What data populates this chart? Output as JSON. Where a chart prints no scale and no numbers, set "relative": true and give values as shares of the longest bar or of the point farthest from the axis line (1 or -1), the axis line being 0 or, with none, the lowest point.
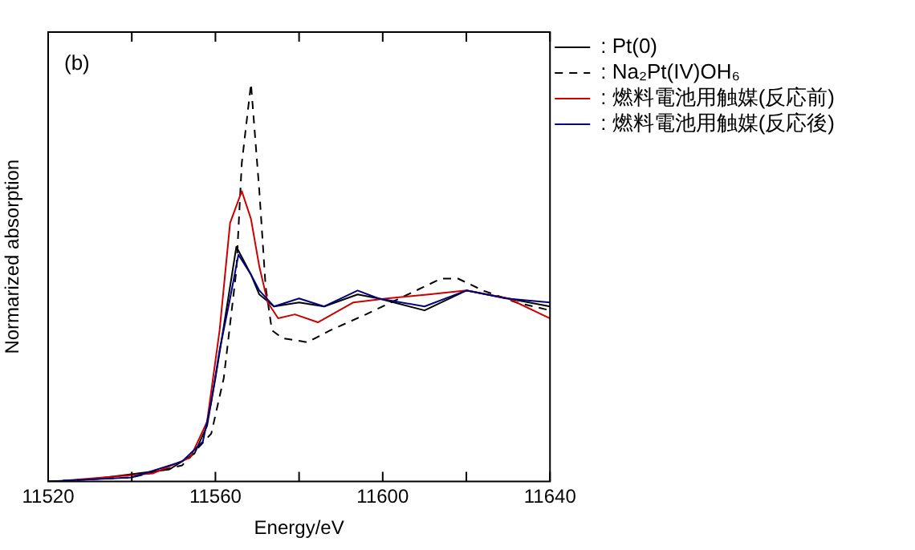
{
  "chart_data": {
    "type": "line",
    "title": "(b)",
    "xlabel": "Energy/eV",
    "ylabel": "Normarized absorption",
    "relative": true,
    "xlim": [
      11520,
      11640
    ],
    "xticks": [
      11520,
      {
        "value": 11540,
        "label": null
      },
      11560,
      {
        "value": 11580,
        "label": null
      },
      11600,
      {
        "value": 11620,
        "label": null
      },
      11640
    ],
    "legend": "right",
    "grid": false,
    "series": [
      {
        "name": ": Pt(0)",
        "color": "#000000",
        "line_style": "solid",
        "x": [
          11530,
          11549,
          11555,
          11558,
          11560,
          11562,
          11565,
          11568.5,
          11570.5,
          11574,
          11580,
          11586,
          11594,
          11599,
          11610,
          11620,
          11630,
          11640
        ],
        "values": [
          0.005,
          0.03,
          0.07,
          0.14,
          0.26,
          0.39,
          0.59,
          0.52,
          0.47,
          0.44,
          0.45,
          0.44,
          0.47,
          0.46,
          0.43,
          0.48,
          0.46,
          0.44
        ]
      },
      {
        "name": ": Na₂Pt(IV)OH₆",
        "color": "#000000",
        "line_style": "dashed",
        "x": [
          11520,
          11540,
          11552,
          11559,
          11562,
          11565,
          11566.3,
          11568.5,
          11570.5,
          11572,
          11573.5,
          11576,
          11582,
          11587.5,
          11596,
          11604,
          11614,
          11618,
          11624,
          11632,
          11640
        ],
        "values": [
          0,
          0.01,
          0.04,
          0.12,
          0.26,
          0.53,
          0.8,
          1,
          0.73,
          0.49,
          0.38,
          0.36,
          0.35,
          0.38,
          0.42,
          0.46,
          0.51,
          0.51,
          0.48,
          0.45,
          0.43
        ]
      },
      {
        "name": ": 燃料電池用触媒(反応前)",
        "color": "#cc0000",
        "line_style": "solid",
        "x": [
          11525,
          11545,
          11554,
          11558,
          11561,
          11563.5,
          11566.3,
          11568.5,
          11570.5,
          11572.5,
          11575,
          11579,
          11584.5,
          11593,
          11601,
          11611,
          11620,
          11630,
          11640
        ],
        "values": [
          0.003,
          0.02,
          0.06,
          0.15,
          0.38,
          0.65,
          0.73,
          0.66,
          0.54,
          0.45,
          0.41,
          0.42,
          0.4,
          0.45,
          0.46,
          0.47,
          0.48,
          0.46,
          0.41
        ]
      },
      {
        "name": ": 燃料電池用触媒(反応後)",
        "color": "#000080",
        "line_style": "solid",
        "x": [
          11520,
          11540,
          11552,
          11557,
          11559,
          11561,
          11563.5,
          11565.5,
          11568.5,
          11570.5,
          11574,
          11580,
          11586,
          11594,
          11599,
          11610,
          11620,
          11629.5,
          11640
        ],
        "values": [
          0,
          0.01,
          0.05,
          0.1,
          0.2,
          0.33,
          0.46,
          0.57,
          0.52,
          0.48,
          0.44,
          0.46,
          0.44,
          0.48,
          0.46,
          0.44,
          0.48,
          0.46,
          0.45
        ]
      }
    ]
  }
}
